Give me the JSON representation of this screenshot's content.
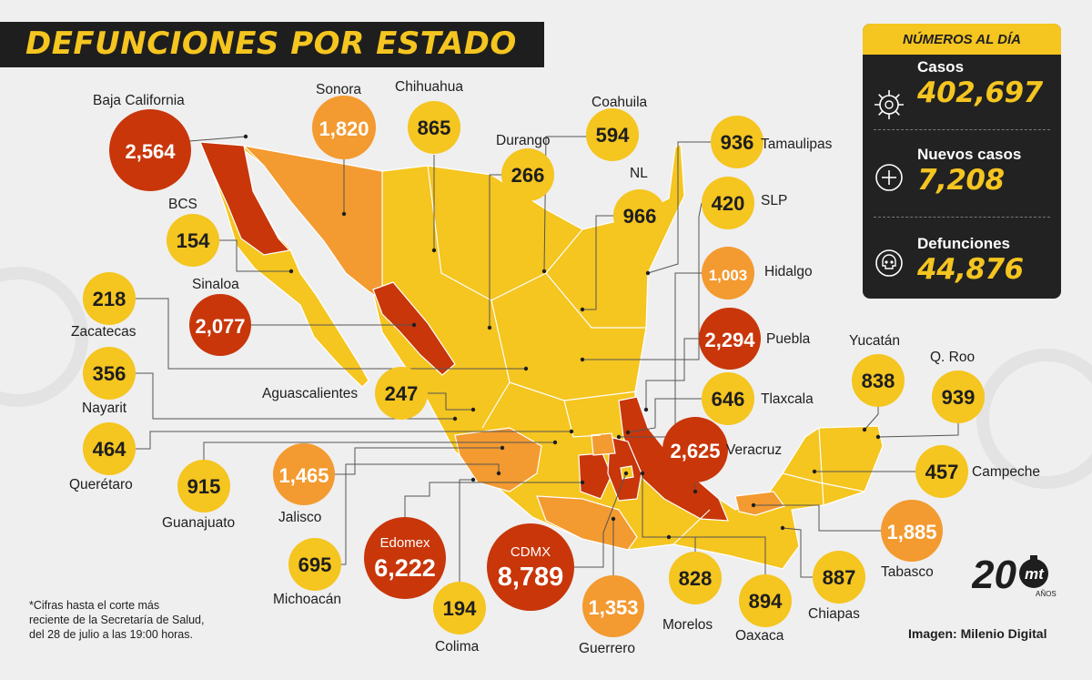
{
  "title": "DEFUNCIONES POR ESTADO",
  "panel": {
    "heading": "NÚMEROS AL DÍA",
    "stats": [
      {
        "label": "Casos",
        "value": "402,697",
        "icon": "virus-icon"
      },
      {
        "label": "Nuevos casos",
        "value": "7,208",
        "icon": "plus-circle-icon"
      },
      {
        "label": "Defunciones",
        "value": "44,876",
        "icon": "skull-icon"
      }
    ]
  },
  "colors": {
    "low": "#f5c520",
    "medium": "#f39a30",
    "high": "#c8360a",
    "panel": "#222222",
    "background": "#efefef"
  },
  "states": [
    {
      "key": "baja_california",
      "name": "Baja California",
      "deaths": "2,564",
      "level": "high"
    },
    {
      "key": "sonora",
      "name": "Sonora",
      "deaths": "1,820",
      "level": "medium"
    },
    {
      "key": "chihuahua",
      "name": "Chihuahua",
      "deaths": "865",
      "level": "low"
    },
    {
      "key": "coahuila",
      "name": "Coahuila",
      "deaths": "594",
      "level": "low"
    },
    {
      "key": "durango",
      "name": "Durango",
      "deaths": "266",
      "level": "low"
    },
    {
      "key": "nl",
      "name": "NL",
      "deaths": "966",
      "level": "low"
    },
    {
      "key": "tamaulipas",
      "name": "Tamaulipas",
      "deaths": "936",
      "level": "low"
    },
    {
      "key": "slp",
      "name": "SLP",
      "deaths": "420",
      "level": "low"
    },
    {
      "key": "bcs",
      "name": "BCS",
      "deaths": "154",
      "level": "low"
    },
    {
      "key": "hidalgo",
      "name": "Hidalgo",
      "deaths": "1,003",
      "level": "medium"
    },
    {
      "key": "zacatecas",
      "name": "Zacatecas",
      "deaths": "218",
      "level": "low"
    },
    {
      "key": "sinaloa",
      "name": "Sinaloa",
      "deaths": "2,077",
      "level": "high"
    },
    {
      "key": "puebla",
      "name": "Puebla",
      "deaths": "2,294",
      "level": "high"
    },
    {
      "key": "yucatan",
      "name": "Yucatán",
      "deaths": "838",
      "level": "low"
    },
    {
      "key": "qroo",
      "name": "Q. Roo",
      "deaths": "939",
      "level": "low"
    },
    {
      "key": "nayarit",
      "name": "Nayarit",
      "deaths": "356",
      "level": "low"
    },
    {
      "key": "aguascalientes",
      "name": "Aguascalientes",
      "deaths": "247",
      "level": "low"
    },
    {
      "key": "tlaxcala",
      "name": "Tlaxcala",
      "deaths": "646",
      "level": "low"
    },
    {
      "key": "queretaro",
      "name": "Querétaro",
      "deaths": "464",
      "level": "low"
    },
    {
      "key": "veracruz",
      "name": "Veracruz",
      "deaths": "2,625",
      "level": "high"
    },
    {
      "key": "campeche",
      "name": "Campeche",
      "deaths": "457",
      "level": "low"
    },
    {
      "key": "guanajuato",
      "name": "Guanajuato",
      "deaths": "915",
      "level": "low"
    },
    {
      "key": "jalisco",
      "name": "Jalisco",
      "deaths": "1,465",
      "level": "medium"
    },
    {
      "key": "edomex",
      "name": "Edomex",
      "deaths": "6,222",
      "level": "high"
    },
    {
      "key": "cdmx",
      "name": "CDMX",
      "deaths": "8,789",
      "level": "high"
    },
    {
      "key": "tabasco",
      "name": "Tabasco",
      "deaths": "1,885",
      "level": "medium"
    },
    {
      "key": "michoacan",
      "name": "Michoacán",
      "deaths": "695",
      "level": "low"
    },
    {
      "key": "colima",
      "name": "Colima",
      "deaths": "194",
      "level": "low"
    },
    {
      "key": "guerrero",
      "name": "Guerrero",
      "deaths": "1,353",
      "level": "medium"
    },
    {
      "key": "morelos",
      "name": "Morelos",
      "deaths": "828",
      "level": "low"
    },
    {
      "key": "oaxaca",
      "name": "Oaxaca",
      "deaths": "894",
      "level": "low"
    },
    {
      "key": "chiapas",
      "name": "Chiapas",
      "deaths": "887",
      "level": "low"
    }
  ],
  "footnote": [
    "*Cifras hasta el corte más",
    "reciente de la Secretaría de Salud,",
    "del 28 de julio a las 19:00 horas."
  ],
  "credit": "Imagen: Milenio Digital",
  "logo": {
    "number": "20",
    "text": "mt",
    "sub": "AÑOS"
  }
}
